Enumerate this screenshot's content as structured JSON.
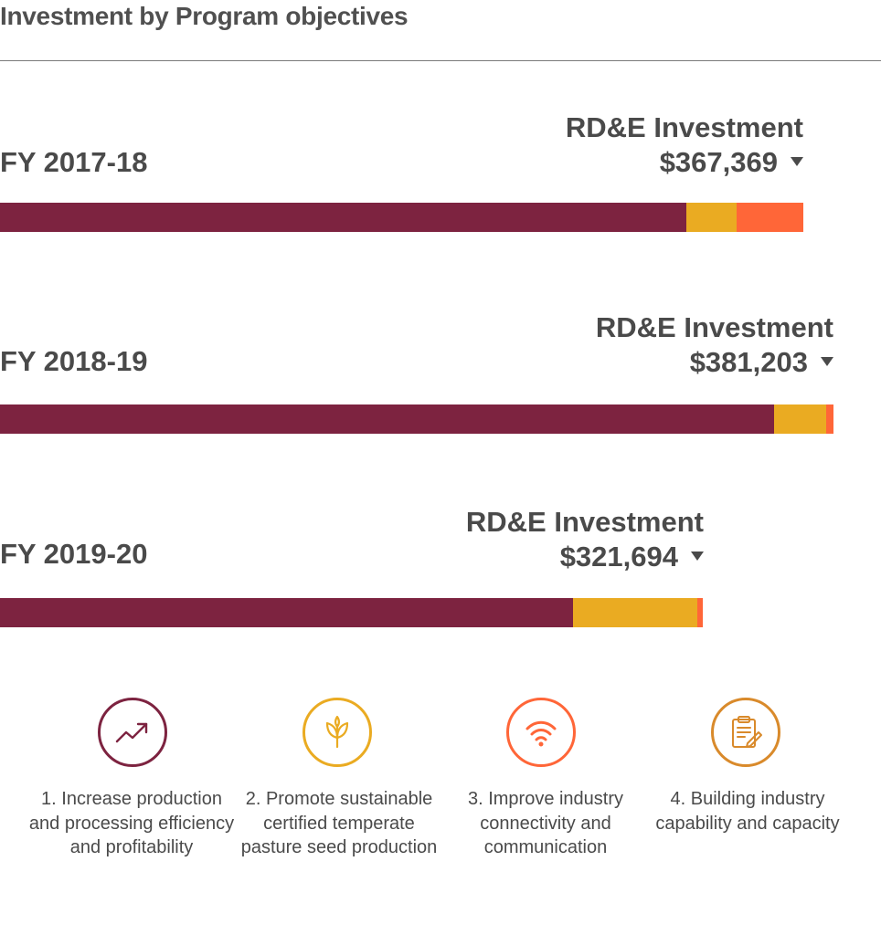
{
  "title": "Investment by Program objectives",
  "colors": {
    "objective_1": "#7d2340",
    "objective_2": "#eaab22",
    "objective_3": "#ff6638",
    "objective_4": "#d98a2b"
  },
  "chart_data": {
    "type": "bar",
    "orientation": "horizontal-stacked",
    "title": "Investment by Program objectives",
    "investment_label": "RD&E Investment",
    "categories": [
      "FY 2017-18",
      "FY 2018-19",
      "FY 2019-20"
    ],
    "totals": [
      "$367,369",
      "$381,203",
      "$321,694"
    ],
    "total_values": [
      367369,
      381203,
      321694
    ],
    "series": [
      {
        "name": "1. Increase production and processing efficiency and profitability",
        "values": [
          314000,
          354000,
          262000
        ]
      },
      {
        "name": "2. Promote sustainable certified temperate pasture seed production",
        "values": [
          23000,
          24000,
          57000
        ]
      },
      {
        "name": "3. Improve industry connectivity and communication",
        "values": [
          30369,
          3203,
          2694
        ]
      },
      {
        "name": "4. Building industry capability and capacity",
        "values": [
          0,
          0,
          0
        ]
      }
    ]
  },
  "objectives": [
    {
      "label": "1. Increase production and processing efficiency and profitability",
      "icon": "trending-up-icon"
    },
    {
      "label": "2. Promote sustainable certified temperate pasture seed production",
      "icon": "plant-sprout-icon"
    },
    {
      "label": "3. Improve industry connectivity and communication",
      "icon": "wifi-signal-icon"
    },
    {
      "label": "4. Building industry capability and capacity",
      "icon": "clipboard-edit-icon"
    }
  ]
}
